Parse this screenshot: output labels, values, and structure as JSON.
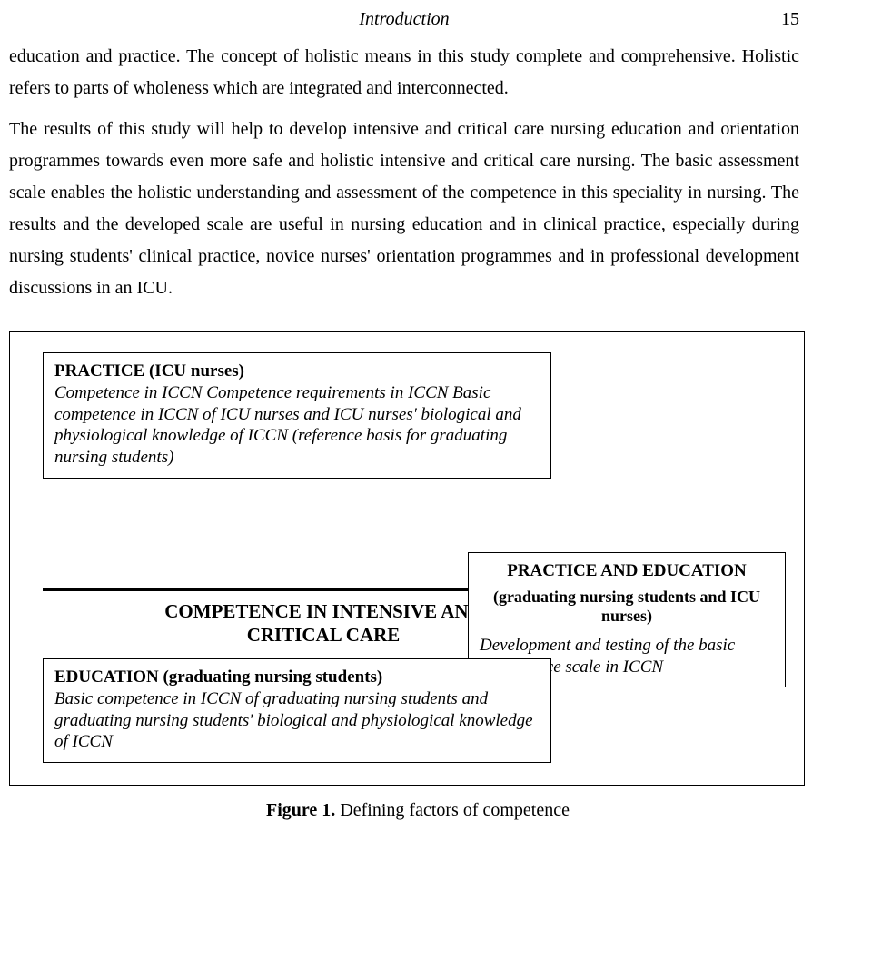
{
  "header": {
    "running_title": "Introduction",
    "page_number": "15"
  },
  "paragraphs": {
    "p1": "education and practice. The concept of holistic means in this study complete and comprehensive. Holistic refers to parts of wholeness which are integrated and interconnected.",
    "p2": "The results of this study will help to develop intensive and critical care nursing education and orientation programmes towards even more safe and holistic intensive and critical care nursing. The basic assessment scale enables the holistic understanding and assessment of the competence in this speciality in nursing. The results and the developed scale are useful in nursing education and in clinical practice, especially during nursing students' clinical practice, novice nurses' orientation programmes and in professional development discussions in an ICU."
  },
  "figure": {
    "practice": {
      "title": "PRACTICE (ICU nurses)",
      "body": "Competence in ICCN\nCompetence requirements in ICCN\nBasic competence in ICCN of ICU nurses and ICU nurses' biological and physiological knowledge of ICCN (reference basis for graduating nursing students)"
    },
    "center_label": "COMPETENCE IN INTENSIVE AND CRITICAL CARE",
    "right": {
      "title": "PRACTICE AND EDUCATION",
      "subtitle": "(graduating nursing students and ICU nurses)",
      "body": "Development and testing of the basic competence scale in ICCN"
    },
    "education": {
      "title": "EDUCATION (graduating nursing students)",
      "body": "Basic competence in ICCN of graduating nursing students and graduating nursing students' biological and physiological knowledge of ICCN"
    },
    "caption_label": "Figure 1.",
    "caption_text": " Defining factors of competence"
  }
}
